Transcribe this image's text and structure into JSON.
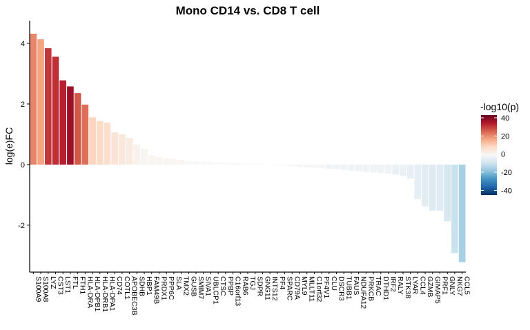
{
  "chart_data": {
    "type": "bar",
    "title": "Mono CD14 vs. CD8 T cell",
    "xlabel": "",
    "ylabel": "log(e)FC",
    "ylim": [
      -3.55,
      4.75
    ],
    "yticks": [
      -2,
      0,
      2,
      4
    ],
    "ytick_labels": [
      "-2",
      "0",
      "2",
      "4"
    ],
    "grid": false,
    "legend": {
      "title": "-log10(p)",
      "position": "right",
      "range": [
        -45,
        43
      ],
      "ticks": [
        40,
        20,
        0,
        -20,
        -40
      ],
      "tick_labels": [
        "40",
        "20",
        "0",
        "-20",
        "-40"
      ]
    },
    "categories": [
      "S100A9",
      "S100A8",
      "LYZ",
      "CST3",
      "LST1",
      "FTL",
      "FTH1",
      "HLA-DRA",
      "HLA-DPB1",
      "HLA-DRB1",
      "HLA-DPA1",
      "CD74",
      "COTL1",
      "APOBEC3B",
      "SDHB",
      "HBP1",
      "FAM49B",
      "PRDX1",
      "PPP6C",
      "SLA",
      "TMX2",
      "GUSB",
      "SMIM7",
      "SIVA1",
      "UBLCP1",
      "CTSC",
      "PPBP",
      "C16orf13",
      "RAB6",
      "TGJ",
      "SDPR",
      "GNG11",
      "INTS12",
      "PF4",
      "SPARC",
      "CD79A",
      "MYL9",
      "MLLT11",
      "C1orf32",
      "PF4V1",
      "CLU",
      "DSCR3",
      "TUBB1",
      "FAUS",
      "NDUFA12",
      "PRKCB",
      "TRAC",
      "DTHD1",
      "IRF2",
      "RALY",
      "STK38",
      "LYAR",
      "CCL4",
      "GZMB",
      "GIMAP5",
      "PRF1",
      "GNLY",
      "NKG7",
      "CCL5"
    ],
    "tick_labels": [
      "S100A9",
      "S100A8",
      "LYZ",
      "CST3",
      "LST1",
      "FTL",
      "FTH1",
      "HLA-DRA",
      "HLA-DPB1",
      "HLA-DRB1",
      "HLA-DPA1",
      "CD74",
      "COTL1",
      "APOBEC3B",
      "SDHB",
      "HBP1",
      "FAM49B",
      "PRDX1",
      "PPP6C",
      "SLA",
      "TMX2",
      "GUSB",
      "SMIM7",
      "SIVA1",
      "UBLCP1",
      "CTSC",
      "PPBP",
      "C16orf13",
      "RAB6",
      "TGJ",
      "SDPR",
      "GNG11",
      "INTS12",
      "PF4",
      "SPARC",
      "CD79A",
      "MYL9",
      "MLLT11",
      "C1orf32",
      "PF4V1",
      "CLU",
      "DSCR3",
      "TUBB1",
      "FAUS",
      "NDUFA12",
      "PRKCB",
      "TRAC",
      "DTHD1",
      "IRF2",
      "RALY",
      "STK38",
      "LYAR",
      "CCL4",
      "GZMB",
      "GIMAP5",
      "PRF1",
      "GNLY",
      "NKG7",
      "CCL5"
    ],
    "values": [
      4.32,
      4.14,
      3.84,
      3.56,
      2.78,
      2.58,
      2.36,
      1.98,
      1.56,
      1.44,
      1.38,
      1.06,
      1.0,
      0.88,
      0.66,
      0.52,
      0.3,
      0.24,
      0.2,
      0.18,
      0.16,
      0.12,
      0.11,
      0.1,
      0.08,
      0.07,
      0.06,
      0.05,
      0.04,
      0.03,
      0.02,
      0.01,
      0.005,
      -0.01,
      -0.03,
      -0.05,
      -0.07,
      -0.09,
      -0.1,
      -0.12,
      -0.14,
      -0.15,
      -0.17,
      -0.2,
      -0.22,
      -0.24,
      -0.26,
      -0.28,
      -0.3,
      -0.33,
      -0.37,
      -0.46,
      -1.14,
      -1.38,
      -1.52,
      -1.52,
      -1.87,
      -2.92,
      -3.22
    ],
    "neg_log10_p": [
      22,
      18,
      32,
      33,
      35,
      38,
      28,
      25,
      10,
      9,
      8,
      6,
      5,
      4,
      2,
      1,
      1,
      1,
      1,
      1,
      1,
      0,
      0,
      0,
      0,
      0,
      0,
      0,
      0,
      0,
      0,
      0,
      0,
      -1,
      -1,
      -1,
      -1,
      -1,
      -1,
      -1,
      -2,
      -2,
      -2,
      -2,
      -2,
      -2,
      -2,
      -2,
      -2,
      -3,
      -3,
      -4,
      -4,
      -5,
      -6,
      -6,
      -8,
      -10,
      -15
    ]
  }
}
